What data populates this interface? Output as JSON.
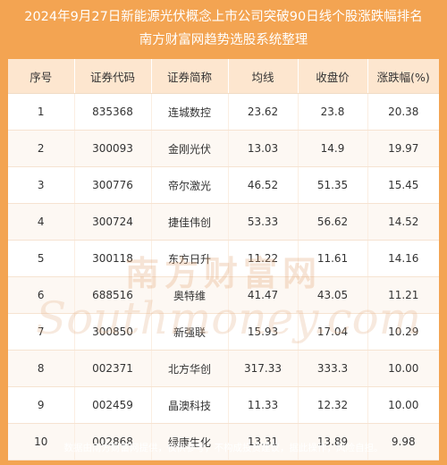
{
  "header": {
    "title_line1": "2024年9月27日新能源光伏概念上市公司突破90日线个股涨跌幅排名",
    "title_line2": "南方财富网趋势选股系统整理"
  },
  "table": {
    "columns": [
      "序号",
      "证券代码",
      "证券简称",
      "均线",
      "收盘价",
      "涨跌幅(%)"
    ],
    "rows": [
      [
        "1",
        "835368",
        "连城数控",
        "23.62",
        "23.8",
        "20.38"
      ],
      [
        "2",
        "300093",
        "金刚光伏",
        "13.03",
        "14.9",
        "19.97"
      ],
      [
        "3",
        "300776",
        "帝尔激光",
        "46.52",
        "51.35",
        "15.45"
      ],
      [
        "4",
        "300724",
        "捷佳伟创",
        "53.33",
        "56.62",
        "14.52"
      ],
      [
        "5",
        "300118",
        "东方日升",
        "11.22",
        "11.61",
        "14.16"
      ],
      [
        "6",
        "688516",
        "奥特维",
        "41.47",
        "43.05",
        "11.21"
      ],
      [
        "7",
        "300850",
        "新强联",
        "15.93",
        "17.04",
        "10.29"
      ],
      [
        "8",
        "002371",
        "北方华创",
        "317.33",
        "333.3",
        "10.00"
      ],
      [
        "9",
        "002459",
        "晶澳科技",
        "11.33",
        "12.32",
        "10.00"
      ],
      [
        "10",
        "002868",
        "绿康生化",
        "13.31",
        "13.89",
        "9.98"
      ]
    ]
  },
  "watermark": {
    "cn": "南方财富网",
    "en": "Southmoney.com"
  },
  "footer": {
    "disclaimer": "数据由南方财富网提供，仅供参考，不构成投资建议，据此操作，风险自担。"
  },
  "colors": {
    "background": "#f3a452",
    "header_row": "#fde6cf",
    "text": "#333333"
  }
}
